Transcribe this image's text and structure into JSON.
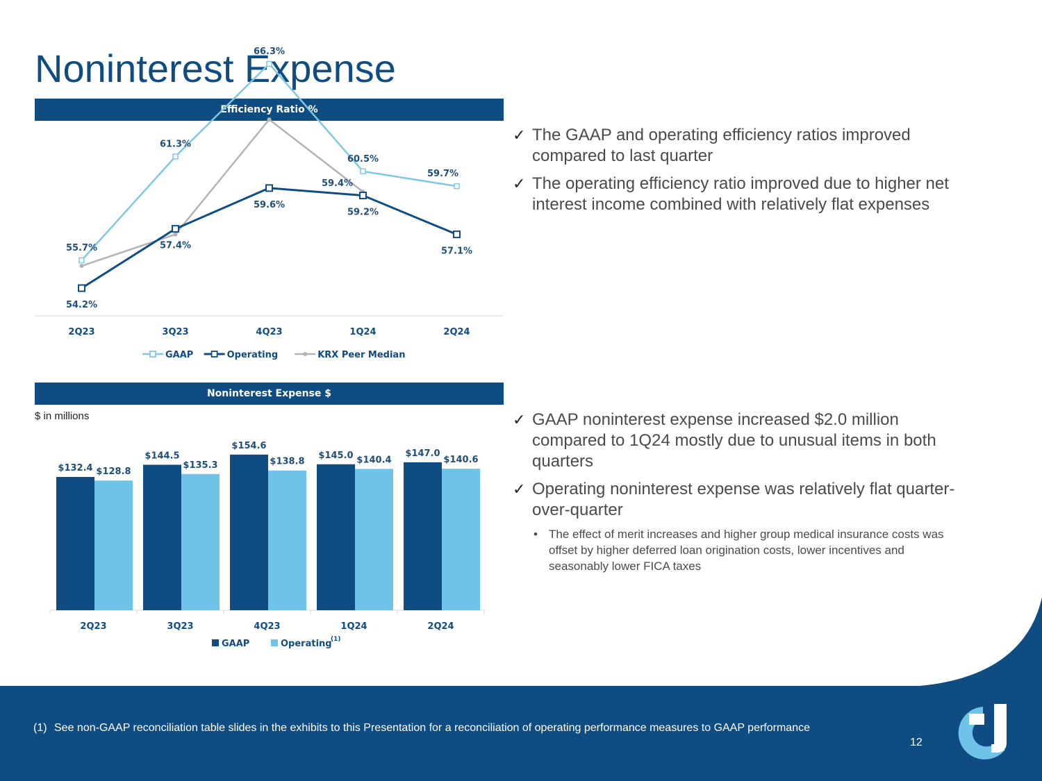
{
  "page": {
    "title": "Noninterest Expense",
    "page_number": "12",
    "footnote_marker": "(1)",
    "footnote_text": "See non-GAAP reconciliation table slides in the exhibits to this Presentation for a reconciliation of operating performance measures to GAAP performance"
  },
  "colors": {
    "navy": "#0f4c81",
    "light_blue": "#6fc3e8",
    "line_light_blue": "#7ec8e3",
    "gray": "#b3b3b3"
  },
  "efficiency": {
    "header": "Efficiency Ratio %"
  },
  "expense": {
    "header": "Noninterest Expense $",
    "units_note": "$ in millions"
  },
  "bullets_top": [
    "The GAAP and operating efficiency ratios improved compared to last quarter",
    "The operating efficiency ratio improved due to higher net interest income combined with relatively flat expenses"
  ],
  "bullets_bottom": [
    "GAAP noninterest expense increased $2.0 million compared to 1Q24 mostly due to unusual items in both quarters",
    "Operating noninterest expense was relatively flat quarter-over-quarter"
  ],
  "sub_bullet": "The effect of merit increases and higher group medical insurance costs was offset by higher deferred loan origination costs, lower incentives and seasonably lower FICA taxes",
  "icons": {
    "check": "✓",
    "bullet": "•"
  },
  "chart_data": [
    {
      "type": "line",
      "title": "Efficiency Ratio %",
      "categories": [
        "2Q23",
        "3Q23",
        "4Q23",
        "1Q24",
        "2Q24"
      ],
      "ylim": [
        50,
        70
      ],
      "series": [
        {
          "name": "GAAP",
          "values": [
            55.7,
            61.3,
            66.3,
            60.5,
            59.7
          ],
          "labels": [
            "55.7%",
            "61.3%",
            "66.3%",
            "60.5%",
            "59.7%"
          ],
          "color": "#7ec8e3"
        },
        {
          "name": "Operating",
          "values": [
            54.2,
            57.4,
            59.6,
            59.2,
            57.1
          ],
          "labels": [
            "54.2%",
            "57.4%",
            "59.6%",
            "59.2%",
            "57.1%"
          ],
          "color": "#0f4c81"
        },
        {
          "name": "KRX Peer Median",
          "values": [
            55.4,
            57.1,
            63.3,
            59.4,
            null
          ],
          "labels": [
            null,
            null,
            null,
            "59.4%",
            null
          ],
          "color": "#b3b3b3"
        }
      ],
      "legend": "bottom"
    },
    {
      "type": "bar",
      "title": "Noninterest Expense $",
      "ylabel": "$ in millions",
      "categories": [
        "2Q23",
        "3Q23",
        "4Q23",
        "1Q24",
        "2Q24"
      ],
      "ylim": [
        0,
        160
      ],
      "series": [
        {
          "name": "GAAP",
          "values": [
            132.4,
            144.5,
            154.6,
            145.0,
            147.0
          ],
          "labels": [
            "$132.4",
            "$144.5",
            "$154.6",
            "$145.0",
            "$147.0"
          ],
          "color": "#0f4c81"
        },
        {
          "name": "Operating",
          "values": [
            128.8,
            135.3,
            138.8,
            140.4,
            140.6
          ],
          "labels": [
            "$128.8",
            "$135.3",
            "$138.8",
            "$140.4",
            "$140.6"
          ],
          "color": "#6fc3e8"
        }
      ],
      "legend_names": [
        "GAAP",
        "Operating"
      ],
      "legend_superscript": "(1)",
      "legend": "bottom"
    }
  ]
}
